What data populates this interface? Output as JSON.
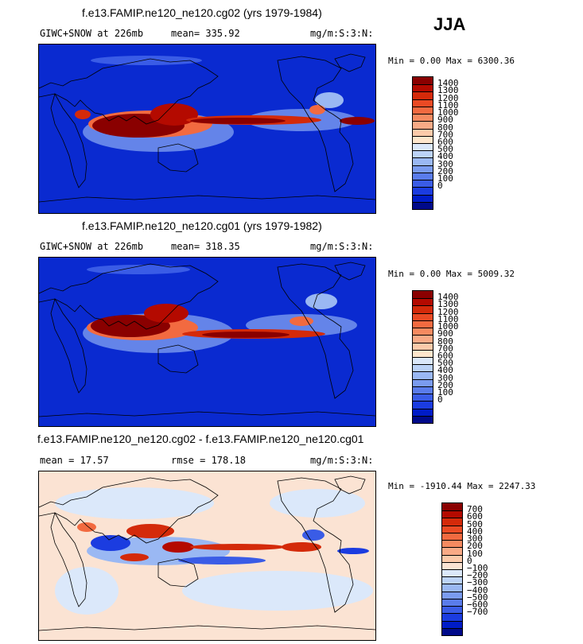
{
  "season": "JJA",
  "panels": [
    {
      "title": "f.e13.FAMIP.ne120_ne120.cg02 (yrs 1979-1984)",
      "left_label": "GIWC+SNOW at 226mb",
      "mean_label": "mean= 335.92",
      "units": "mg/m:S:3:N:",
      "minmax": "Min =   0.00 Max = 6300.36",
      "background": "#0a2ad0",
      "colorbar": {
        "colors": [
          "#8a0000",
          "#b40a00",
          "#d42a0a",
          "#ea4a24",
          "#f26a40",
          "#f68a60",
          "#f9aa86",
          "#fccaaa",
          "#fee6cc",
          "#dbe8fa",
          "#bcd3f7",
          "#9ab8f3",
          "#7a9bef",
          "#5a7ceb",
          "#3a5ce6",
          "#1b3ce0",
          "#001cc8",
          "#000a8a"
        ],
        "labels": [
          "1400",
          "1300",
          "1200",
          "1100",
          "1000",
          "900",
          "800",
          "700",
          "600",
          "500",
          "400",
          "300",
          "200",
          "100",
          "0"
        ]
      }
    },
    {
      "title": "f.e13.FAMIP.ne120_ne120.cg01 (yrs 1979-1982)",
      "left_label": "GIWC+SNOW at 226mb",
      "mean_label": "mean= 318.35",
      "units": "mg/m:S:3:N:",
      "minmax": "Min =   0.00 Max = 5009.32",
      "background": "#0a2ad0",
      "colorbar": {
        "colors": [
          "#8a0000",
          "#b40a00",
          "#d42a0a",
          "#ea4a24",
          "#f26a40",
          "#f68a60",
          "#f9aa86",
          "#fccaaa",
          "#fee6cc",
          "#dbe8fa",
          "#bcd3f7",
          "#9ab8f3",
          "#7a9bef",
          "#5a7ceb",
          "#3a5ce6",
          "#1b3ce0",
          "#001cc8",
          "#000a8a"
        ],
        "labels": [
          "1400",
          "1300",
          "1200",
          "1100",
          "1000",
          "900",
          "800",
          "700",
          "600",
          "500",
          "400",
          "300",
          "200",
          "100",
          "0"
        ]
      }
    },
    {
      "title": "f.e13.FAMIP.ne120_ne120.cg02 - f.e13.FAMIP.ne120_ne120.cg01",
      "left_label": "mean =  17.57",
      "mean_label": "rmse = 178.18",
      "units": "mg/m:S:3:N:",
      "minmax": "Min = -1910.44 Max = 2247.33",
      "background": "#fbe3d3",
      "colorbar": {
        "colors": [
          "#8a0000",
          "#b40a00",
          "#d42a0a",
          "#ea4a24",
          "#f26a40",
          "#f68a60",
          "#f9aa86",
          "#fccaaa",
          "#fbe3d3",
          "#dbe8fa",
          "#bcd3f7",
          "#9ab8f3",
          "#7a9bef",
          "#5a7ceb",
          "#3a5ce6",
          "#1b3ce0",
          "#001cc8",
          "#000a8a"
        ],
        "labels": [
          "700",
          "600",
          "500",
          "400",
          "300",
          "200",
          "100",
          "0",
          "−100",
          "−200",
          "−300",
          "−400",
          "−500",
          "−600",
          "−700"
        ]
      }
    }
  ]
}
